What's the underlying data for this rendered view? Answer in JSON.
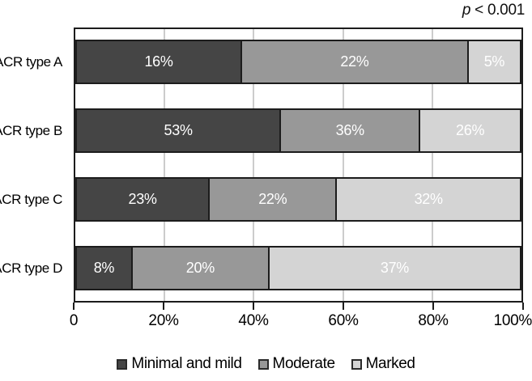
{
  "annotation": {
    "symbol": "p",
    "rest": " < 0.001"
  },
  "chart_data": {
    "type": "bar",
    "variant": "horizontal_stacked_100_percent",
    "title": "",
    "xlabel": "",
    "ylabel": "",
    "categories": [
      "ACR type A",
      "ACR type B",
      "ACR type C",
      "ACR type D"
    ],
    "series": [
      {
        "name": "Minimal and mild",
        "color": "#454545",
        "values": [
          16,
          53,
          23,
          8
        ]
      },
      {
        "name": "Moderate",
        "color": "#989898",
        "values": [
          22,
          36,
          22,
          20
        ]
      },
      {
        "name": "Marked",
        "color": "#d4d4d4",
        "values": [
          5,
          26,
          32,
          37
        ]
      }
    ],
    "value_suffix": "%",
    "x_ticks": [
      "0",
      "20%",
      "40%",
      "60%",
      "80%",
      "100%"
    ],
    "x_tick_positions": [
      0,
      20,
      40,
      60,
      80,
      100
    ],
    "xlim": [
      0,
      100
    ],
    "grid": true,
    "gridline_positions": [
      20,
      40,
      60,
      80
    ],
    "legend_position": "bottom",
    "annotation": "p < 0.001",
    "bar_label_color": "#ffffff"
  },
  "colors": {
    "border": "#1c1c1c",
    "gridline": "#cccccc",
    "background": "#ffffff",
    "text": "#000000"
  }
}
